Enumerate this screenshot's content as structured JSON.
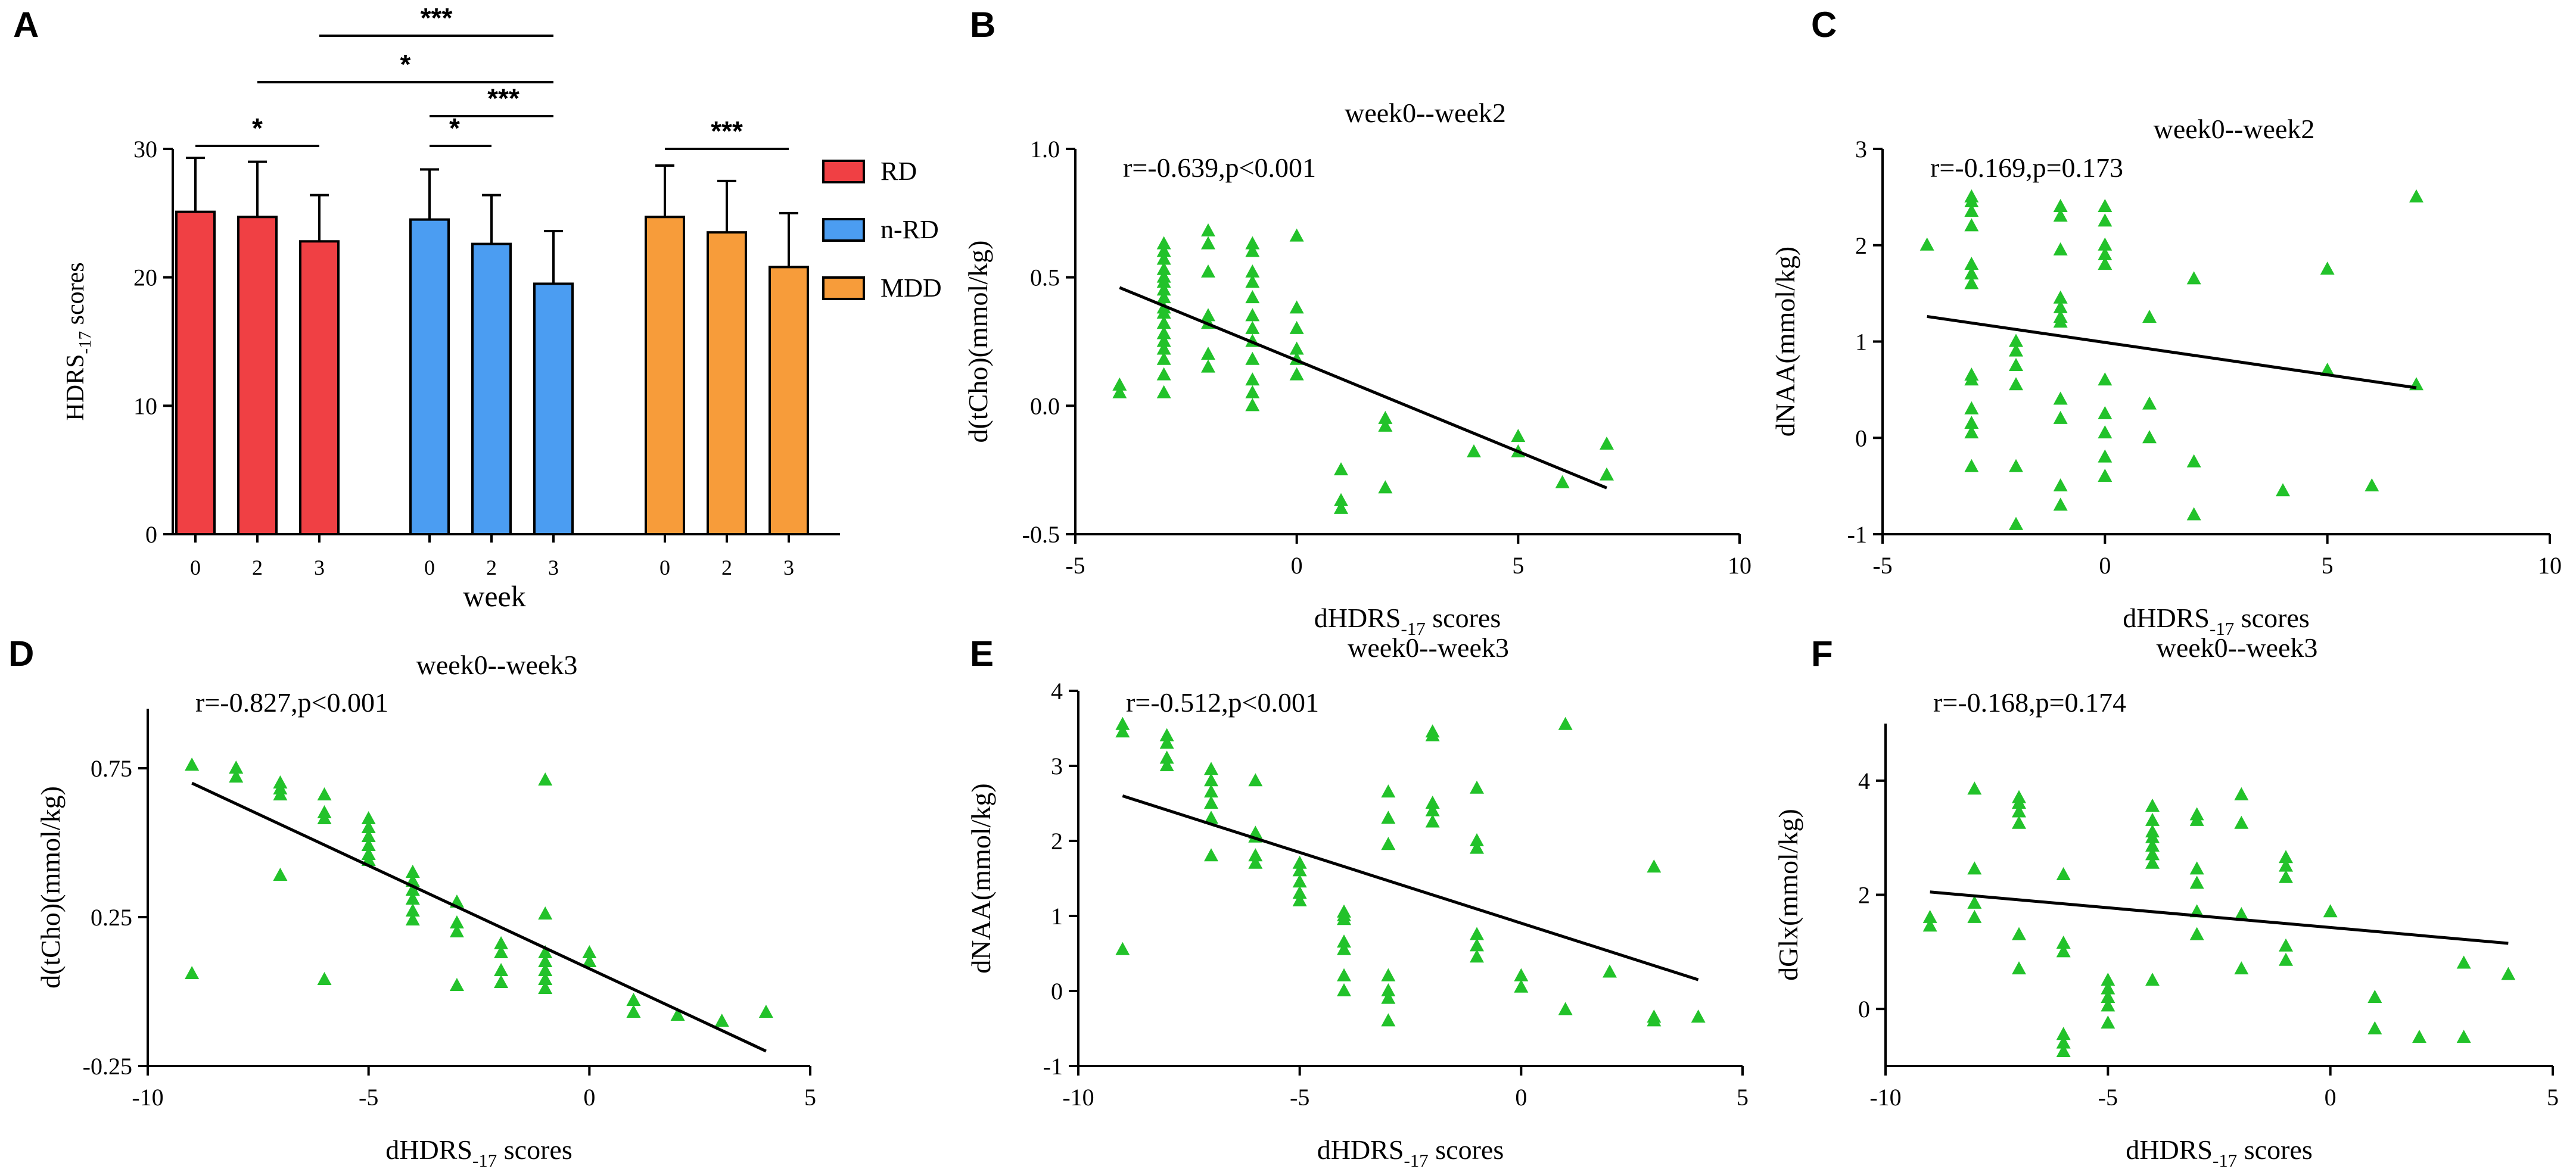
{
  "figure": {
    "colors": {
      "marker": "#22c22a",
      "line": "#000000",
      "axis": "#000000"
    }
  },
  "chart_data": [
    {
      "id": "A",
      "panel_label": "A",
      "type": "bar",
      "ylabel_main": "HDRS",
      "ylabel_sub": "-17",
      "ylabel_tail": " scores",
      "xlabel": "week",
      "ylim": [
        0,
        30
      ],
      "yticks": [
        "0",
        "10",
        "20",
        "30"
      ],
      "groups": [
        {
          "name": "RD",
          "color": "#f04044",
          "categories": [
            "0",
            "2",
            "3"
          ],
          "values": [
            25.1,
            24.7,
            22.8
          ],
          "errors": [
            4.2,
            4.3,
            3.6
          ]
        },
        {
          "name": "n-RD",
          "color": "#4b9df2",
          "categories": [
            "0",
            "2",
            "3"
          ],
          "values": [
            24.5,
            22.6,
            19.5
          ],
          "errors": [
            3.9,
            3.8,
            4.1
          ]
        },
        {
          "name": "MDD",
          "color": "#f79c3a",
          "categories": [
            "0",
            "2",
            "3"
          ],
          "values": [
            24.7,
            23.5,
            20.8
          ],
          "errors": [
            4.0,
            4.0,
            4.2
          ]
        }
      ],
      "legend": [
        "RD",
        "n-RD",
        "MDD"
      ],
      "significance": [
        "*",
        "*",
        "***",
        "*",
        "***",
        "***"
      ]
    },
    {
      "id": "B",
      "panel_label": "B",
      "type": "scatter",
      "title": "week0--week2",
      "annotation": "r=-0.639,p<0.001",
      "xlabel_main": "dHDRS",
      "xlabel_sub": "-17",
      "xlabel_tail": " scores",
      "ylabel": "d(tCho)(mmol/kg)",
      "xlim": [
        -5,
        10
      ],
      "ylim": [
        -0.5,
        1.0
      ],
      "xticks": [
        "-5",
        "0",
        "5",
        "10"
      ],
      "yticks": [
        "-0.5",
        "0.0",
        "0.5",
        "1.0"
      ],
      "fit": {
        "x": [
          -4,
          7
        ],
        "y": [
          0.46,
          -0.32
        ]
      },
      "points": [
        [
          -4,
          0.05
        ],
        [
          -4,
          0.08
        ],
        [
          -3,
          0.05
        ],
        [
          -3,
          0.12
        ],
        [
          -3,
          0.18
        ],
        [
          -3,
          0.22
        ],
        [
          -3,
          0.25
        ],
        [
          -3,
          0.28
        ],
        [
          -3,
          0.32
        ],
        [
          -3,
          0.36
        ],
        [
          -3,
          0.38
        ],
        [
          -3,
          0.42
        ],
        [
          -3,
          0.45
        ],
        [
          -3,
          0.48
        ],
        [
          -3,
          0.5
        ],
        [
          -3,
          0.53
        ],
        [
          -3,
          0.57
        ],
        [
          -3,
          0.6
        ],
        [
          -3,
          0.63
        ],
        [
          -2,
          0.15
        ],
        [
          -2,
          0.2
        ],
        [
          -2,
          0.32
        ],
        [
          -2,
          0.35
        ],
        [
          -2,
          0.52
        ],
        [
          -2,
          0.63
        ],
        [
          -2,
          0.68
        ],
        [
          -1,
          0.0
        ],
        [
          -1,
          0.05
        ],
        [
          -1,
          0.1
        ],
        [
          -1,
          0.18
        ],
        [
          -1,
          0.25
        ],
        [
          -1,
          0.3
        ],
        [
          -1,
          0.35
        ],
        [
          -1,
          0.42
        ],
        [
          -1,
          0.48
        ],
        [
          -1,
          0.52
        ],
        [
          -1,
          0.6
        ],
        [
          -1,
          0.63
        ],
        [
          0,
          0.12
        ],
        [
          0,
          0.18
        ],
        [
          0,
          0.22
        ],
        [
          0,
          0.3
        ],
        [
          0,
          0.38
        ],
        [
          0,
          0.66
        ],
        [
          1,
          -0.25
        ],
        [
          1,
          -0.37
        ],
        [
          1,
          -0.4
        ],
        [
          2,
          -0.05
        ],
        [
          2,
          -0.08
        ],
        [
          2,
          -0.32
        ],
        [
          4,
          -0.18
        ],
        [
          5,
          -0.12
        ],
        [
          5,
          -0.18
        ],
        [
          6,
          -0.3
        ],
        [
          7,
          -0.15
        ],
        [
          7,
          -0.27
        ]
      ]
    },
    {
      "id": "C",
      "panel_label": "C",
      "type": "scatter",
      "title": "week0--week2",
      "annotation": "r=-0.169,p=0.173",
      "xlabel_main": "dHDRS",
      "xlabel_sub": "-17",
      "xlabel_tail": " scores",
      "ylabel": "dNAA(mmol/kg)",
      "xlim": [
        -5,
        10
      ],
      "ylim": [
        -1,
        3
      ],
      "xticks": [
        "-5",
        "0",
        "5",
        "10"
      ],
      "yticks": [
        "-1",
        "0",
        "1",
        "2",
        "3"
      ],
      "fit": {
        "x": [
          -4,
          7
        ],
        "y": [
          1.26,
          0.52
        ]
      },
      "points": [
        [
          -4,
          2.0
        ],
        [
          -3,
          2.5
        ],
        [
          -3,
          2.45
        ],
        [
          -3,
          2.35
        ],
        [
          -3,
          2.2
        ],
        [
          -3,
          1.8
        ],
        [
          -3,
          1.7
        ],
        [
          -3,
          1.6
        ],
        [
          -3,
          0.65
        ],
        [
          -3,
          0.6
        ],
        [
          -3,
          0.3
        ],
        [
          -3,
          0.15
        ],
        [
          -3,
          0.05
        ],
        [
          -3,
          -0.3
        ],
        [
          -2,
          1.0
        ],
        [
          -2,
          0.9
        ],
        [
          -2,
          0.75
        ],
        [
          -2,
          0.55
        ],
        [
          -2,
          -0.3
        ],
        [
          -2,
          -0.9
        ],
        [
          -1,
          2.4
        ],
        [
          -1,
          2.3
        ],
        [
          -1,
          1.95
        ],
        [
          -1,
          1.45
        ],
        [
          -1,
          1.35
        ],
        [
          -1,
          1.25
        ],
        [
          -1,
          1.2
        ],
        [
          -1,
          0.4
        ],
        [
          -1,
          0.2
        ],
        [
          -1,
          -0.5
        ],
        [
          -1,
          -0.7
        ],
        [
          0,
          2.4
        ],
        [
          0,
          2.25
        ],
        [
          0,
          2.0
        ],
        [
          0,
          1.9
        ],
        [
          0,
          1.8
        ],
        [
          0,
          0.6
        ],
        [
          0,
          0.25
        ],
        [
          0,
          0.05
        ],
        [
          0,
          -0.2
        ],
        [
          0,
          -0.4
        ],
        [
          1,
          1.25
        ],
        [
          1,
          0.35
        ],
        [
          1,
          0.0
        ],
        [
          2,
          1.65
        ],
        [
          2,
          -0.25
        ],
        [
          2,
          -0.8
        ],
        [
          4,
          -0.55
        ],
        [
          5,
          1.75
        ],
        [
          5,
          0.7
        ],
        [
          6,
          -0.5
        ],
        [
          7,
          2.5
        ],
        [
          7,
          0.55
        ]
      ]
    },
    {
      "id": "D",
      "panel_label": "D",
      "type": "scatter",
      "title": "week0--week3",
      "annotation": "r=-0.827,p<0.001",
      "xlabel_main": "dHDRS",
      "xlabel_sub": "-17",
      "xlabel_tail": " scores",
      "ylabel": "d(tCho)(mmol/kg)",
      "xlim": [
        -10,
        5
      ],
      "ylim": [
        -0.25,
        0.95
      ],
      "xticks": [
        "-10",
        "-5",
        "0",
        "5"
      ],
      "yticks": [
        "-0.25",
        "0.25",
        "0.75"
      ],
      "fit": {
        "x": [
          -9,
          4
        ],
        "y": [
          0.7,
          -0.2
        ]
      },
      "points": [
        [
          -9,
          0.76
        ],
        [
          -9,
          0.06
        ],
        [
          -8,
          0.75
        ],
        [
          -8,
          0.72
        ],
        [
          -7,
          0.7
        ],
        [
          -7,
          0.68
        ],
        [
          -7,
          0.66
        ],
        [
          -7,
          0.39
        ],
        [
          -6,
          0.66
        ],
        [
          -6,
          0.6
        ],
        [
          -6,
          0.58
        ],
        [
          -6,
          0.04
        ],
        [
          -5,
          0.58
        ],
        [
          -5,
          0.55
        ],
        [
          -5,
          0.52
        ],
        [
          -5,
          0.49
        ],
        [
          -5,
          0.46
        ],
        [
          -5,
          0.44
        ],
        [
          -4,
          0.4
        ],
        [
          -4,
          0.37
        ],
        [
          -4,
          0.34
        ],
        [
          -4,
          0.31
        ],
        [
          -4,
          0.27
        ],
        [
          -4,
          0.24
        ],
        [
          -3,
          0.3
        ],
        [
          -3,
          0.23
        ],
        [
          -3,
          0.2
        ],
        [
          -3,
          0.02
        ],
        [
          -2,
          0.16
        ],
        [
          -2,
          0.13
        ],
        [
          -2,
          0.07
        ],
        [
          -2,
          0.03
        ],
        [
          -1,
          0.71
        ],
        [
          -1,
          0.26
        ],
        [
          -1,
          0.13
        ],
        [
          -1,
          0.1
        ],
        [
          -1,
          0.07
        ],
        [
          -1,
          0.04
        ],
        [
          -1,
          0.01
        ],
        [
          0,
          0.13
        ],
        [
          0,
          0.1
        ],
        [
          1,
          -0.03
        ],
        [
          1,
          -0.07
        ],
        [
          2,
          -0.08
        ],
        [
          3,
          -0.1
        ],
        [
          4,
          -0.07
        ]
      ]
    },
    {
      "id": "E",
      "panel_label": "E",
      "type": "scatter",
      "title": "week0--week3",
      "annotation": "r=-0.512,p<0.001",
      "xlabel_main": "dHDRS",
      "xlabel_sub": "-17",
      "xlabel_tail": " scores",
      "ylabel": "dNAA(mmol/kg)",
      "xlim": [
        -10,
        5
      ],
      "ylim": [
        -1,
        4
      ],
      "xticks": [
        "-10",
        "-5",
        "0",
        "5"
      ],
      "yticks": [
        "-1",
        "0",
        "1",
        "2",
        "3",
        "4"
      ],
      "fit": {
        "x": [
          -9,
          4
        ],
        "y": [
          2.6,
          0.15
        ]
      },
      "points": [
        [
          -9,
          3.55
        ],
        [
          -9,
          3.45
        ],
        [
          -9,
          0.55
        ],
        [
          -8,
          3.4
        ],
        [
          -8,
          3.3
        ],
        [
          -8,
          3.1
        ],
        [
          -8,
          3.0
        ],
        [
          -7,
          2.95
        ],
        [
          -7,
          2.8
        ],
        [
          -7,
          2.65
        ],
        [
          -7,
          2.5
        ],
        [
          -7,
          2.3
        ],
        [
          -7,
          1.8
        ],
        [
          -6,
          2.8
        ],
        [
          -6,
          2.1
        ],
        [
          -6,
          2.05
        ],
        [
          -6,
          1.8
        ],
        [
          -6,
          1.7
        ],
        [
          -5,
          1.7
        ],
        [
          -5,
          1.6
        ],
        [
          -5,
          1.45
        ],
        [
          -5,
          1.3
        ],
        [
          -5,
          1.2
        ],
        [
          -4,
          1.05
        ],
        [
          -4,
          1.0
        ],
        [
          -4,
          0.95
        ],
        [
          -4,
          0.65
        ],
        [
          -4,
          0.55
        ],
        [
          -4,
          0.2
        ],
        [
          -4,
          0.0
        ],
        [
          -3,
          2.65
        ],
        [
          -3,
          2.3
        ],
        [
          -3,
          1.95
        ],
        [
          -3,
          0.2
        ],
        [
          -3,
          0.0
        ],
        [
          -3,
          -0.1
        ],
        [
          -3,
          -0.4
        ],
        [
          -2,
          3.45
        ],
        [
          -2,
          3.4
        ],
        [
          -2,
          2.5
        ],
        [
          -2,
          2.4
        ],
        [
          -2,
          2.25
        ],
        [
          -1,
          2.7
        ],
        [
          -1,
          2.0
        ],
        [
          -1,
          1.9
        ],
        [
          -1,
          0.75
        ],
        [
          -1,
          0.6
        ],
        [
          -1,
          0.45
        ],
        [
          0,
          0.2
        ],
        [
          0,
          0.05
        ],
        [
          1,
          3.55
        ],
        [
          1,
          -0.25
        ],
        [
          2,
          0.25
        ],
        [
          3,
          1.65
        ],
        [
          3,
          -0.35
        ],
        [
          3,
          -0.4
        ],
        [
          4,
          -0.35
        ]
      ]
    },
    {
      "id": "F",
      "panel_label": "F",
      "type": "scatter",
      "title": "week0--week3",
      "annotation": "r=-0.168,p=0.174",
      "xlabel_main": "dHDRS",
      "xlabel_sub": "-17",
      "xlabel_tail": " scores",
      "ylabel": "dGlx(mmol/kg)",
      "xlim": [
        -10,
        5
      ],
      "ylim": [
        -1,
        5
      ],
      "xticks": [
        "-10",
        "-5",
        "0",
        "5"
      ],
      "yticks": [
        "0",
        "2",
        "4"
      ],
      "fit": {
        "x": [
          -9,
          4
        ],
        "y": [
          2.05,
          1.15
        ]
      },
      "points": [
        [
          -9,
          1.6
        ],
        [
          -9,
          1.45
        ],
        [
          -8,
          3.85
        ],
        [
          -8,
          2.45
        ],
        [
          -8,
          1.85
        ],
        [
          -8,
          1.6
        ],
        [
          -7,
          3.7
        ],
        [
          -7,
          3.6
        ],
        [
          -7,
          3.45
        ],
        [
          -7,
          3.25
        ],
        [
          -7,
          1.3
        ],
        [
          -7,
          0.7
        ],
        [
          -6,
          2.35
        ],
        [
          -6,
          1.15
        ],
        [
          -6,
          1.0
        ],
        [
          -6,
          -0.45
        ],
        [
          -6,
          -0.6
        ],
        [
          -6,
          -0.75
        ],
        [
          -5,
          0.5
        ],
        [
          -5,
          0.35
        ],
        [
          -5,
          0.2
        ],
        [
          -5,
          0.05
        ],
        [
          -5,
          -0.25
        ],
        [
          -4,
          3.55
        ],
        [
          -4,
          3.3
        ],
        [
          -4,
          3.1
        ],
        [
          -4,
          3.0
        ],
        [
          -4,
          2.85
        ],
        [
          -4,
          2.7
        ],
        [
          -4,
          2.55
        ],
        [
          -4,
          0.5
        ],
        [
          -3,
          3.4
        ],
        [
          -3,
          3.3
        ],
        [
          -3,
          2.45
        ],
        [
          -3,
          2.2
        ],
        [
          -3,
          1.7
        ],
        [
          -3,
          1.3
        ],
        [
          -2,
          3.75
        ],
        [
          -2,
          3.25
        ],
        [
          -2,
          1.65
        ],
        [
          -2,
          0.7
        ],
        [
          -1,
          2.65
        ],
        [
          -1,
          2.5
        ],
        [
          -1,
          2.3
        ],
        [
          -1,
          1.1
        ],
        [
          -1,
          0.85
        ],
        [
          0,
          1.7
        ],
        [
          1,
          0.2
        ],
        [
          1,
          -0.35
        ],
        [
          2,
          -0.5
        ],
        [
          3,
          0.8
        ],
        [
          3,
          -0.5
        ],
        [
          4,
          0.6
        ]
      ]
    }
  ]
}
